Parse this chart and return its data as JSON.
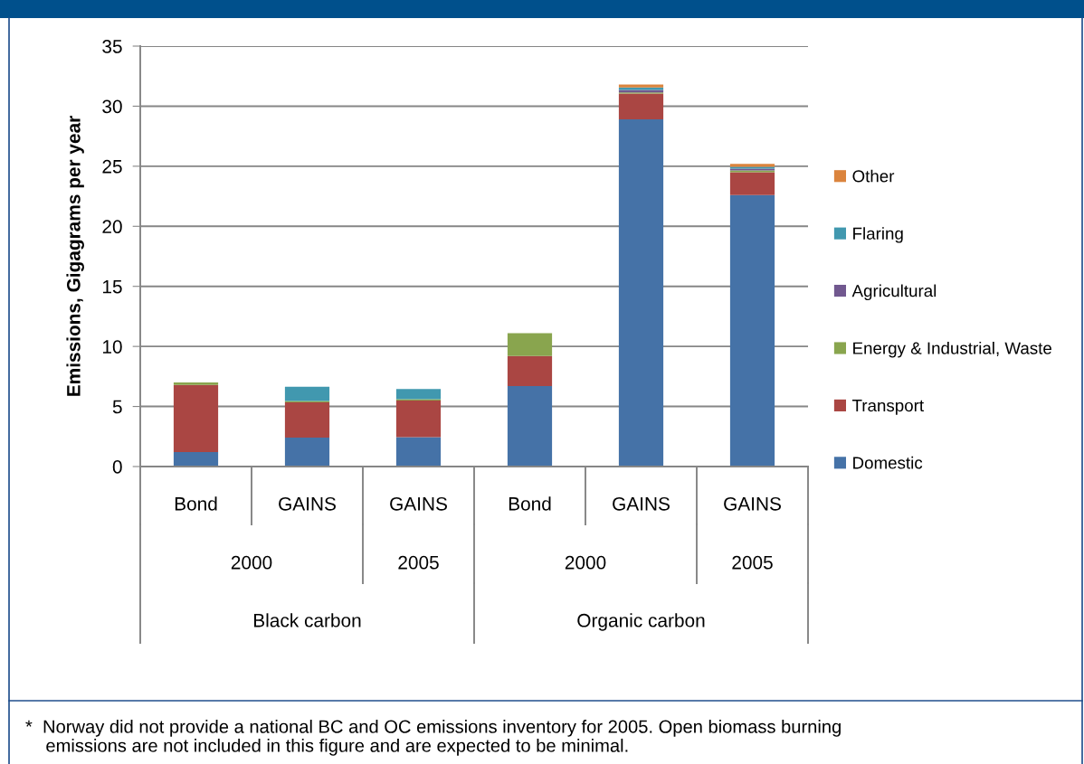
{
  "chart_data": {
    "type": "bar",
    "stacked": true,
    "ylabel": "Emissions, Gigagrams per year",
    "categories": [
      "Bond",
      "GAINS",
      "GAINS",
      "Bond",
      "GAINS",
      "GAINS"
    ],
    "series": [
      {
        "name": "Domestic",
        "color": "#4572a7",
        "values": [
          1.2,
          2.4,
          2.45,
          6.7,
          28.9,
          22.6
        ]
      },
      {
        "name": "Transport",
        "color": "#aa4643",
        "values": [
          5.6,
          2.95,
          3.05,
          2.5,
          2.15,
          1.9
        ]
      },
      {
        "name": "Energy & Industrial, Waste",
        "color": "#89a54e",
        "values": [
          0.2,
          0.1,
          0.1,
          1.9,
          0.1,
          0.15
        ]
      },
      {
        "name": "Agricultural",
        "color": "#71588f",
        "values": [
          null,
          null,
          null,
          null,
          0.2,
          0.15
        ]
      },
      {
        "name": "Flaring",
        "color": "#4198af",
        "values": [
          null,
          1.2,
          0.85,
          null,
          0.2,
          0.15
        ]
      },
      {
        "name": "Other",
        "color": "#db843d",
        "values": [
          null,
          null,
          null,
          null,
          0.25,
          0.25
        ]
      }
    ],
    "ylim": [
      0,
      35
    ],
    "yticks": [
      0,
      5,
      10,
      15,
      20,
      25,
      30,
      35
    ],
    "grid": "y",
    "legend": "right",
    "annotations": [
      "2000",
      "2005",
      "2000",
      "2005",
      "Black carbon",
      "Organic carbon",
      "*  Norway did not provide a national BC and OC emissions inventory for 2005. Open biomass burning\n    emissions are not included in this figure and are expected to be minimal."
    ]
  }
}
